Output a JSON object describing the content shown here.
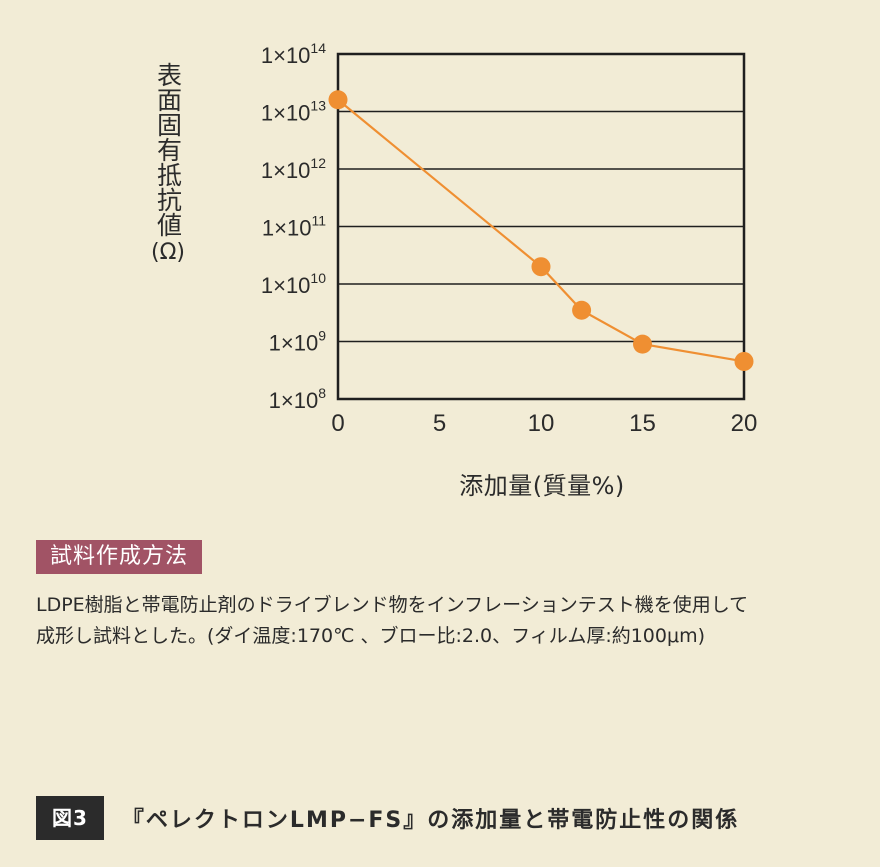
{
  "chart_data": {
    "type": "line",
    "ylabel": "表面固有抵抗値",
    "ylabel_unit": "(Ω)",
    "xlabel": "添加量(質量%)",
    "y_scale": "log",
    "ylim": [
      100000000.0,
      100000000000000.0
    ],
    "xlim": [
      0,
      20
    ],
    "x_ticks": [
      {
        "value": 0,
        "label": "0"
      },
      {
        "value": 5,
        "label": "5"
      },
      {
        "value": 10,
        "label": "10"
      },
      {
        "value": 15,
        "label": "15"
      },
      {
        "value": 20,
        "label": "20"
      }
    ],
    "y_ticks": [
      {
        "exp": 8,
        "base": "1×10",
        "sup": "8"
      },
      {
        "exp": 9,
        "base": "1×10",
        "sup": "9"
      },
      {
        "exp": 10,
        "base": "1×10",
        "sup": "10"
      },
      {
        "exp": 11,
        "base": "1×10",
        "sup": "11"
      },
      {
        "exp": 12,
        "base": "1×10",
        "sup": "12"
      },
      {
        "exp": 13,
        "base": "1×10",
        "sup": "13"
      },
      {
        "exp": 14,
        "base": "1×10",
        "sup": "14"
      }
    ],
    "grid": "horizontal",
    "series": [
      {
        "color": "#ef8f32",
        "points": [
          {
            "x": 0,
            "y": 16000000000000.0
          },
          {
            "x": 10,
            "y": 20000000000.0
          },
          {
            "x": 12,
            "y": 3500000000.0
          },
          {
            "x": 15,
            "y": 900000000.0
          },
          {
            "x": 20,
            "y": 450000000.0
          }
        ]
      }
    ]
  },
  "section_tag": "試料作成方法",
  "description": {
    "line1": "LDPE樹脂と帯電防止剤のドライブレンド物をインフレーションテスト機を使用して",
    "line2": "成形し試料とした。(ダイ温度:170℃ 、ブロー比:2.0、フィルム厚:約100μm)"
  },
  "caption": {
    "badge": "図3",
    "title": "『ペレクトロンLMP−FS』の添加量と帯電防止性の関係"
  },
  "colors": {
    "background": "#f2ecd6",
    "series": "#ef8f32",
    "tag_bg": "#a15365",
    "badge_bg": "#2b2b2b"
  }
}
